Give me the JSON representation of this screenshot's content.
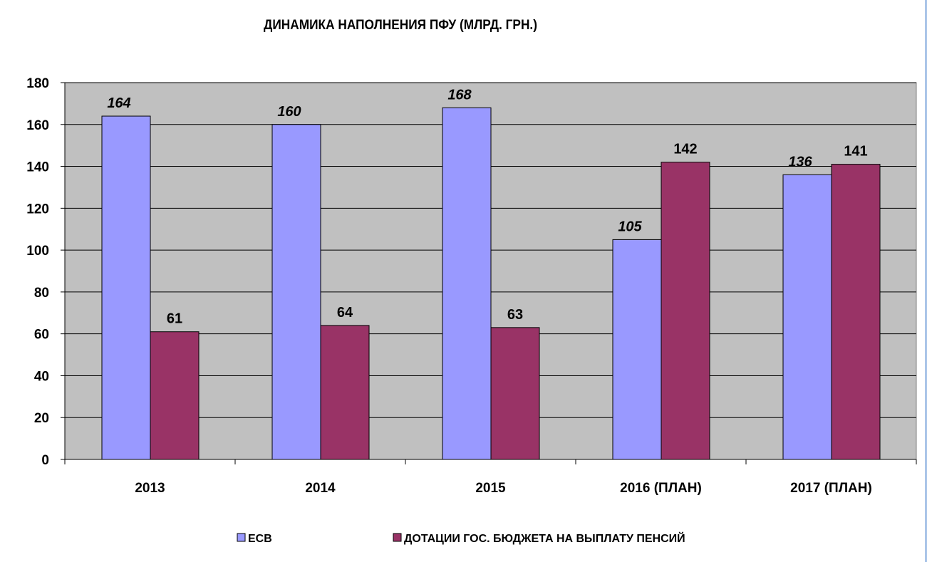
{
  "chart_data": {
    "type": "bar",
    "title": "ДИНАМИКА НАПОЛНЕНИЯ ПФУ (МЛРД. ГРН.)",
    "xlabel": "",
    "ylabel": "",
    "ylim": [
      0,
      180
    ],
    "yticks": [
      0,
      20,
      40,
      60,
      80,
      100,
      120,
      140,
      160,
      180
    ],
    "grid": true,
    "legend_position": "bottom",
    "categories": [
      "2013",
      "2014",
      "2015",
      "2016 (ПЛАН)",
      "2017 (ПЛАН)"
    ],
    "series": [
      {
        "name": "ЕСВ",
        "color": "#9999ff",
        "values": [
          164,
          160,
          168,
          105,
          136
        ]
      },
      {
        "name": "ДОТАЦИИ ГОС. БЮДЖЕТА НА ВЫПЛАТУ ПЕНСИЙ",
        "color": "#993366",
        "values": [
          61,
          64,
          63,
          142,
          141
        ]
      }
    ],
    "plot_background": "#c0c0c0"
  }
}
